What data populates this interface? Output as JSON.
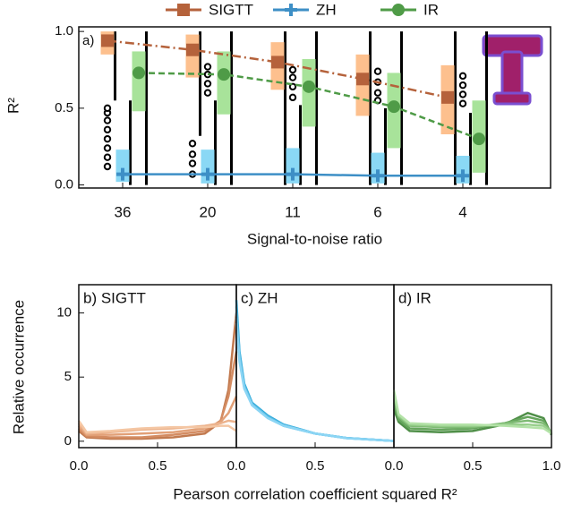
{
  "chart_data": [
    {
      "type": "box",
      "panel_label": "a)",
      "ylabel": "R²",
      "xlabel": "Signal-to-noise ratio",
      "categories": [
        "36",
        "20",
        "11",
        "6",
        "4"
      ],
      "ylim": [
        -0.02,
        1.03
      ],
      "yticks": [
        {
          "value": 0,
          "label": "0.0"
        },
        {
          "value": 0.5,
          "label": "0.5"
        },
        {
          "value": 1,
          "label": "1.0"
        }
      ],
      "series": [
        {
          "name": "SIGTT",
          "color": "#b5623b",
          "box_color": "#fdc08e",
          "linestyle": "dashdot",
          "marker": "square",
          "whislo": [
            0.55,
            0.32,
            0.0,
            0.0,
            0.0
          ],
          "q1": [
            0.85,
            0.7,
            0.62,
            0.45,
            0.33
          ],
          "med": [
            0.94,
            0.88,
            0.8,
            0.69,
            0.57
          ],
          "q3": [
            1.0,
            0.98,
            0.93,
            0.85,
            0.78
          ],
          "whishi": [
            1.0,
            1.0,
            1.0,
            1.0,
            1.0
          ],
          "outliers": [
            [
              0.12,
              0.18,
              0.24,
              0.3,
              0.36,
              0.42,
              0.47,
              0.5
            ],
            [
              0.07,
              0.14,
              0.2,
              0.27
            ],
            [],
            [],
            []
          ]
        },
        {
          "name": "ZH",
          "color": "#3d8fc6",
          "box_color": "#8ad8f5",
          "linestyle": "solid",
          "marker": "plus",
          "whislo": [
            0,
            0,
            0,
            0,
            0
          ],
          "q1": [
            0.02,
            0.01,
            0.01,
            0.01,
            0.01
          ],
          "med": [
            0.07,
            0.07,
            0.07,
            0.06,
            0.06
          ],
          "q3": [
            0.23,
            0.23,
            0.24,
            0.21,
            0.19
          ],
          "whishi": [
            0.55,
            0.55,
            0.52,
            0.5,
            0.47
          ],
          "outliers": [
            [],
            [
              0.6,
              0.66,
              0.72,
              0.77
            ],
            [
              0.57,
              0.64,
              0.7,
              0.75
            ],
            [
              0.55,
              0.6,
              0.67,
              0.74
            ],
            [
              0.53,
              0.59,
              0.65,
              0.71
            ]
          ]
        },
        {
          "name": "IR",
          "color": "#4f9b47",
          "box_color": "#a8e39a",
          "linestyle": "dashed",
          "marker": "circle",
          "whislo": [
            0,
            0,
            0,
            0,
            0
          ],
          "q1": [
            0.48,
            0.46,
            0.38,
            0.24,
            0.08
          ],
          "med": [
            0.73,
            0.72,
            0.64,
            0.51,
            0.3
          ],
          "q3": [
            0.87,
            0.87,
            0.82,
            0.73,
            0.55
          ],
          "whishi": [
            1.0,
            1.0,
            1.0,
            1.0,
            1.0
          ],
          "outliers": [
            [],
            [],
            [],
            [],
            []
          ]
        }
      ]
    },
    {
      "type": "line",
      "panel_label": "b) SIGTT",
      "ylabel": "Relative occurrence",
      "xlim": [
        0,
        1
      ],
      "xticks": [
        {
          "value": 0,
          "label": "0.0"
        },
        {
          "value": 0.5,
          "label": "0.5"
        }
      ],
      "ylim": [
        -0.5,
        12.2
      ],
      "yticks": [
        0,
        5,
        10
      ],
      "x": [
        0,
        0.05,
        0.2,
        0.4,
        0.6,
        0.8,
        0.9,
        0.95,
        1.0
      ],
      "series": [
        {
          "color": "#c27a4f",
          "values": [
            0.8,
            0.3,
            0.2,
            0.2,
            0.3,
            0.6,
            1.5,
            4.0,
            10.0
          ]
        },
        {
          "color": "#d48c62",
          "values": [
            1.0,
            0.4,
            0.3,
            0.3,
            0.5,
            0.8,
            1.6,
            3.5,
            7.0
          ]
        },
        {
          "color": "#e2a077",
          "values": [
            1.2,
            0.5,
            0.5,
            0.6,
            0.7,
            1.0,
            1.5,
            2.2,
            3.5
          ]
        },
        {
          "color": "#ecb38d",
          "values": [
            1.4,
            0.6,
            0.7,
            0.9,
            1.0,
            1.2,
            1.4,
            1.6,
            1.5
          ]
        },
        {
          "color": "#f4c6a3",
          "values": [
            1.6,
            0.7,
            0.8,
            1.0,
            1.1,
            1.1,
            1.2,
            1.2,
            0.8
          ]
        }
      ]
    },
    {
      "type": "line",
      "panel_label": "c) ZH",
      "xlabel": "Pearson correlation coefficient squared R²",
      "xlim": [
        0,
        1
      ],
      "xticks": [
        {
          "value": 0,
          "label": "0.0"
        },
        {
          "value": 0.5,
          "label": "0.5"
        }
      ],
      "ylim": [
        -0.5,
        12.2
      ],
      "x": [
        0,
        0.02,
        0.05,
        0.1,
        0.2,
        0.3,
        0.5,
        0.7,
        1.0
      ],
      "series": [
        {
          "color": "#2fa9d8",
          "values": [
            11.0,
            7.0,
            4.5,
            3.0,
            2.0,
            1.3,
            0.6,
            0.25,
            0.02
          ]
        },
        {
          "color": "#45b4e0",
          "values": [
            10.5,
            6.8,
            4.4,
            2.9,
            1.9,
            1.3,
            0.6,
            0.25,
            0.02
          ]
        },
        {
          "color": "#5cbfe7",
          "values": [
            10.0,
            6.6,
            4.3,
            2.9,
            1.9,
            1.2,
            0.6,
            0.24,
            0.02
          ]
        },
        {
          "color": "#74caee",
          "values": [
            9.6,
            6.4,
            4.2,
            2.8,
            1.8,
            1.2,
            0.6,
            0.24,
            0.02
          ]
        },
        {
          "color": "#8cd5f4",
          "values": [
            9.2,
            6.2,
            4.1,
            2.8,
            1.8,
            1.2,
            0.6,
            0.23,
            0.02
          ]
        }
      ]
    },
    {
      "type": "line",
      "panel_label": "d) IR",
      "xlim": [
        0,
        1
      ],
      "xticks": [
        {
          "value": 0,
          "label": "0.0"
        },
        {
          "value": 0.5,
          "label": "0.5"
        },
        {
          "value": 1,
          "label": "1.0"
        }
      ],
      "ylim": [
        -0.5,
        12.2
      ],
      "x": [
        0,
        0.03,
        0.1,
        0.3,
        0.5,
        0.7,
        0.85,
        0.95,
        1.0
      ],
      "series": [
        {
          "color": "#4f8f48",
          "values": [
            2.5,
            1.5,
            0.8,
            0.7,
            0.8,
            1.3,
            2.2,
            1.8,
            0.5
          ]
        },
        {
          "color": "#66a65d",
          "values": [
            3.0,
            1.7,
            1.0,
            0.9,
            1.0,
            1.4,
            1.9,
            1.6,
            0.6
          ]
        },
        {
          "color": "#7fbb74",
          "values": [
            3.5,
            1.9,
            1.2,
            1.1,
            1.1,
            1.4,
            1.6,
            1.4,
            0.7
          ]
        },
        {
          "color": "#98cf8c",
          "values": [
            3.8,
            2.0,
            1.3,
            1.2,
            1.2,
            1.3,
            1.3,
            1.2,
            0.7
          ]
        },
        {
          "color": "#b3e2a7",
          "values": [
            4.0,
            2.1,
            1.4,
            1.3,
            1.3,
            1.2,
            1.1,
            1.0,
            0.6
          ]
        }
      ]
    }
  ]
}
